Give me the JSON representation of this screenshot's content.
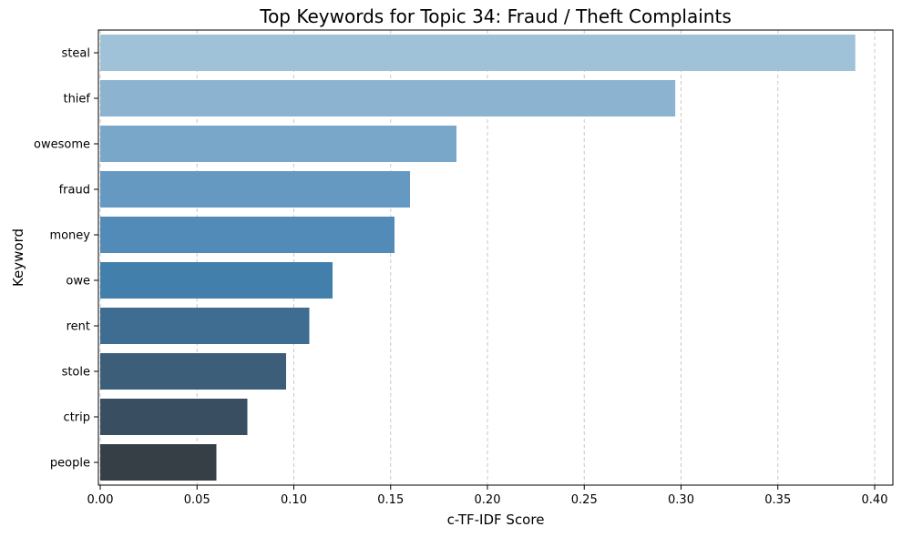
{
  "chart_data": {
    "type": "bar",
    "orientation": "horizontal",
    "title": "Top Keywords for Topic 34: Fraud / Theft Complaints",
    "xlabel": "c-TF-IDF Score",
    "ylabel": "Keyword",
    "xlim": [
      0,
      0.41
    ],
    "grid": "x-dashed",
    "xticks": [
      "0.00",
      "0.05",
      "0.10",
      "0.15",
      "0.20",
      "0.25",
      "0.30",
      "0.35",
      "0.40"
    ],
    "categories": [
      "steal",
      "thief",
      "owesome",
      "fraud",
      "money",
      "owe",
      "rent",
      "stole",
      "ctrip",
      "people"
    ],
    "values": [
      0.39,
      0.297,
      0.184,
      0.16,
      0.152,
      0.12,
      0.108,
      0.096,
      0.076,
      0.06
    ],
    "colors": [
      "#a0c2d9",
      "#8cb3cf",
      "#78a7c9",
      "#6699c1",
      "#528bb8",
      "#437fab",
      "#3e6d91",
      "#3d5e79",
      "#394e61",
      "#373f46"
    ]
  }
}
